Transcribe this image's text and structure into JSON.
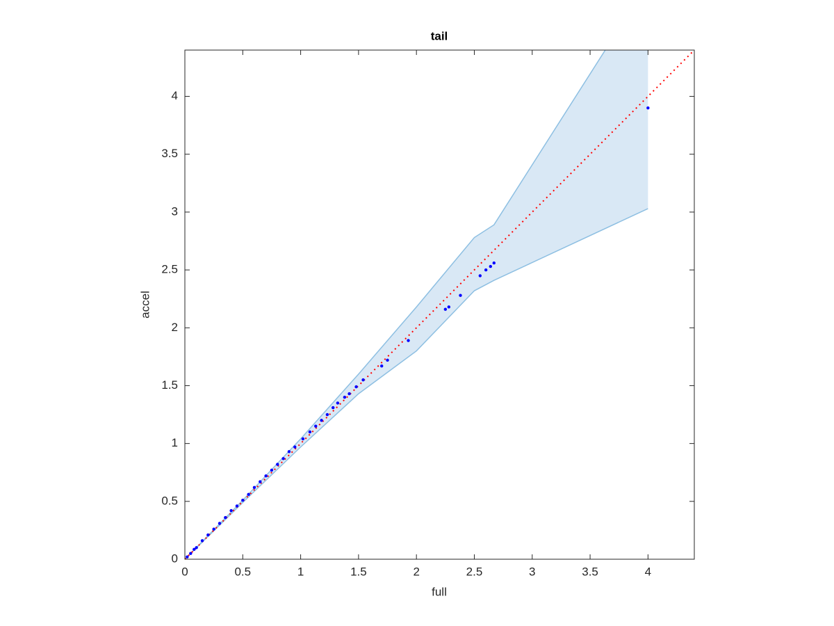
{
  "chart_data": {
    "type": "scatter",
    "title": "tail",
    "xlabel": "full",
    "ylabel": "accel",
    "xlim": [
      0,
      4.4
    ],
    "ylim": [
      0,
      4.4
    ],
    "xticks": [
      0,
      0.5,
      1,
      1.5,
      2,
      2.5,
      3,
      3.5,
      4
    ],
    "yticks": [
      0,
      0.5,
      1,
      1.5,
      2,
      2.5,
      3,
      3.5,
      4
    ],
    "series": [
      {
        "color": "#0000ff",
        "x": [
          0.02,
          0.05,
          0.08,
          0.1,
          0.15,
          0.2,
          0.25,
          0.3,
          0.35,
          0.4,
          0.45,
          0.5,
          0.55,
          0.6,
          0.65,
          0.7,
          0.75,
          0.8,
          0.85,
          0.9,
          0.95,
          1.02,
          1.08,
          1.13,
          1.18,
          1.23,
          1.28,
          1.32,
          1.38,
          1.42,
          1.48,
          1.54,
          1.7,
          1.75,
          1.93,
          2.25,
          2.28,
          2.38,
          2.55,
          2.6,
          2.64,
          2.67,
          4.0
        ],
        "values": [
          0.02,
          0.05,
          0.085,
          0.1,
          0.16,
          0.21,
          0.26,
          0.31,
          0.36,
          0.42,
          0.46,
          0.51,
          0.56,
          0.62,
          0.67,
          0.72,
          0.77,
          0.82,
          0.87,
          0.93,
          0.97,
          1.04,
          1.1,
          1.15,
          1.2,
          1.25,
          1.31,
          1.35,
          1.4,
          1.43,
          1.49,
          1.55,
          1.67,
          1.72,
          1.89,
          2.16,
          2.18,
          2.28,
          2.45,
          2.5,
          2.53,
          2.56,
          3.9
        ]
      }
    ],
    "band": {
      "fill": "#d9e8f5",
      "edge": "#8dbfe2",
      "x": [
        0,
        0.5,
        1,
        1.5,
        2,
        2.5,
        2.67,
        4
      ],
      "upper": [
        0,
        0.51,
        1.04,
        1.6,
        2.18,
        2.78,
        2.89,
        4.98
      ],
      "lower": [
        0,
        0.49,
        0.97,
        1.43,
        1.8,
        2.32,
        2.41,
        3.03
      ]
    },
    "reference_line": {
      "color": "#ff0000",
      "x": [
        0,
        4.4
      ],
      "y": [
        0,
        4.4
      ]
    }
  }
}
